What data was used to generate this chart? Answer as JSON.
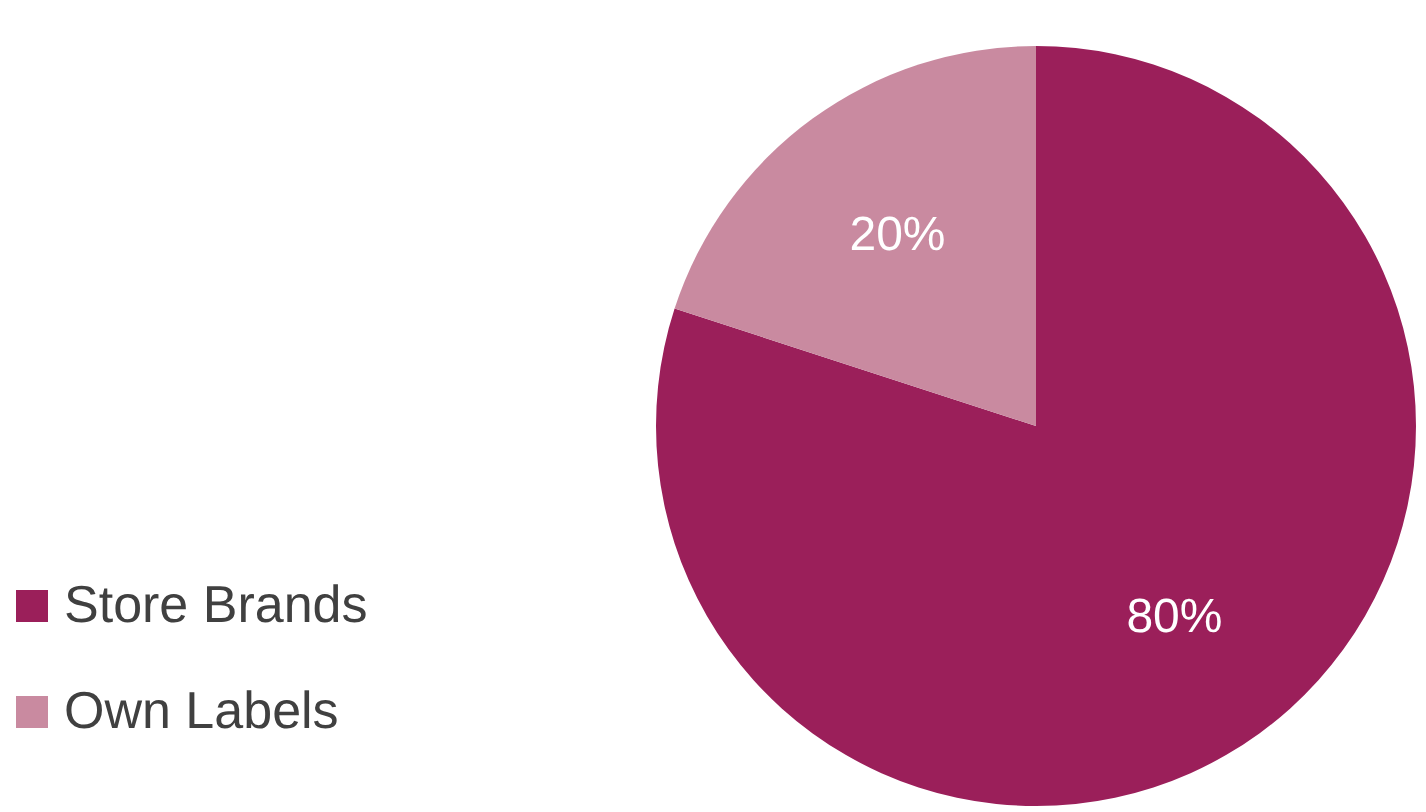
{
  "chart_data": {
    "type": "pie",
    "categories": [
      "Store Brands",
      "Own Labels"
    ],
    "values": [
      80,
      20
    ],
    "colors": [
      "#9b1f5a",
      "#c98aa0"
    ],
    "value_labels": [
      "80%",
      "20%"
    ],
    "legend": "bottom left"
  }
}
